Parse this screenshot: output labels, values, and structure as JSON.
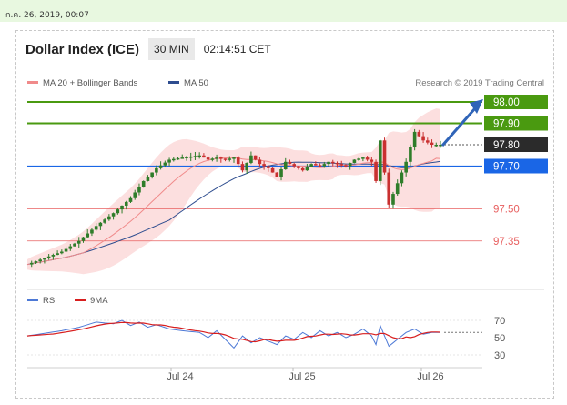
{
  "timestamp": "ก.ค. 26, 2019, 00:07",
  "header": {
    "title": "Dollar Index (ICE)",
    "timeframe": "30 MIN",
    "time": "02:14:51 CET"
  },
  "legend": [
    {
      "name": "MA 20 + Bollinger Bands",
      "color": "#f08a8a"
    },
    {
      "name": "MA 50",
      "color": "#2e4d8f"
    }
  ],
  "credit": "Research © 2019 Trading Central",
  "colors": {
    "resistance": "#4a9a10",
    "support": "#1a66e6",
    "minor": "#e86060",
    "bull": "#2f7d2a",
    "bear": "#c93030",
    "rsi": "#4d79d6",
    "ma9": "#d81e1e"
  },
  "chart_data": [
    {
      "type": "candlestick",
      "title": "Dollar Index (ICE)",
      "x": [
        "Jul 24",
        "Jul 25",
        "Jul 26"
      ],
      "ylim": [
        97.2,
        98.02
      ],
      "levels": [
        {
          "value": 98.0,
          "label": "98.00",
          "kind": "resistance"
        },
        {
          "value": 97.9,
          "label": "97.90",
          "kind": "resistance"
        },
        {
          "value": 97.8,
          "label": "97.80",
          "kind": "current"
        },
        {
          "value": 97.7,
          "label": "97.70",
          "kind": "support"
        },
        {
          "value": 97.5,
          "label": "97.50",
          "kind": "minor"
        },
        {
          "value": 97.35,
          "label": "97.35",
          "kind": "minor"
        }
      ],
      "arrow": {
        "from": 97.8,
        "to": 98.0
      },
      "close_path": [
        [
          0,
          97.24
        ],
        [
          4,
          97.27
        ],
        [
          8,
          97.3
        ],
        [
          12,
          97.35
        ],
        [
          16,
          97.42
        ],
        [
          20,
          97.48
        ],
        [
          24,
          97.55
        ],
        [
          27,
          97.63
        ],
        [
          30,
          97.69
        ],
        [
          33,
          97.73
        ],
        [
          36,
          97.74
        ],
        [
          40,
          97.75
        ],
        [
          42,
          97.73
        ],
        [
          44,
          97.74
        ],
        [
          46,
          97.73
        ],
        [
          48,
          97.74
        ],
        [
          50,
          97.68
        ],
        [
          52,
          97.75
        ],
        [
          54,
          97.71
        ],
        [
          56,
          97.69
        ],
        [
          58,
          97.65
        ],
        [
          60,
          97.72
        ],
        [
          62,
          97.7
        ],
        [
          64,
          97.68
        ],
        [
          66,
          97.71
        ],
        [
          68,
          97.7
        ],
        [
          70,
          97.72
        ],
        [
          72,
          97.71
        ],
        [
          74,
          97.7
        ],
        [
          76,
          97.73
        ],
        [
          78,
          97.74
        ],
        [
          80,
          97.72
        ],
        [
          81,
          97.63
        ],
        [
          82,
          97.82
        ],
        [
          84,
          97.52
        ],
        [
          86,
          97.62
        ],
        [
          88,
          97.72
        ],
        [
          90,
          97.86
        ],
        [
          92,
          97.82
        ],
        [
          94,
          97.8
        ],
        [
          96,
          97.8
        ]
      ],
      "rsi": {
        "labels": [
          "RSI",
          "9MA"
        ],
        "ylim": [
          30,
          70
        ],
        "ticks": [
          70,
          50,
          30
        ],
        "values": [
          [
            0,
            52
          ],
          [
            4,
            55
          ],
          [
            8,
            58
          ],
          [
            12,
            62
          ],
          [
            16,
            68
          ],
          [
            20,
            66
          ],
          [
            22,
            70
          ],
          [
            24,
            64
          ],
          [
            26,
            68
          ],
          [
            28,
            62
          ],
          [
            30,
            65
          ],
          [
            33,
            60
          ],
          [
            36,
            58
          ],
          [
            40,
            56
          ],
          [
            42,
            50
          ],
          [
            44,
            58
          ],
          [
            46,
            48
          ],
          [
            48,
            38
          ],
          [
            50,
            52
          ],
          [
            52,
            44
          ],
          [
            54,
            50
          ],
          [
            56,
            46
          ],
          [
            58,
            42
          ],
          [
            60,
            52
          ],
          [
            62,
            48
          ],
          [
            64,
            56
          ],
          [
            66,
            50
          ],
          [
            68,
            58
          ],
          [
            70,
            52
          ],
          [
            72,
            56
          ],
          [
            74,
            50
          ],
          [
            76,
            54
          ],
          [
            78,
            60
          ],
          [
            80,
            52
          ],
          [
            81,
            42
          ],
          [
            82,
            64
          ],
          [
            84,
            40
          ],
          [
            86,
            48
          ],
          [
            88,
            56
          ],
          [
            90,
            60
          ],
          [
            92,
            54
          ],
          [
            94,
            56
          ],
          [
            96,
            56
          ]
        ]
      }
    }
  ]
}
